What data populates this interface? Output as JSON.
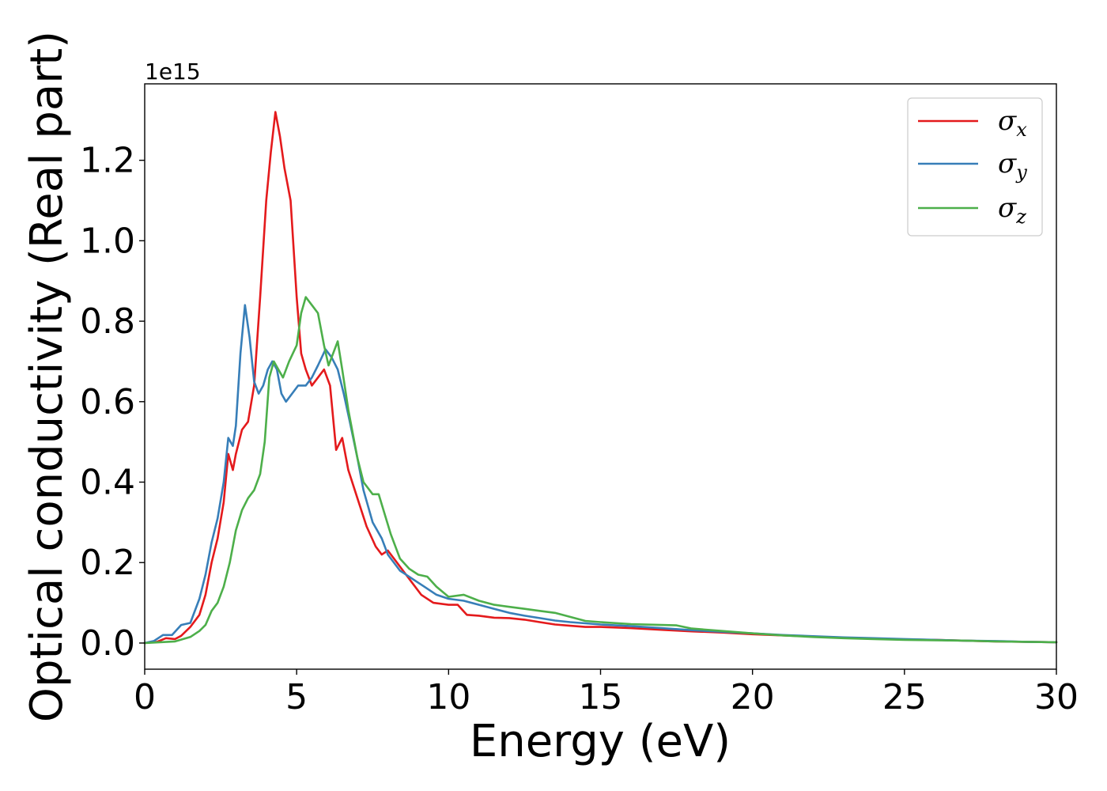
{
  "chart_data": {
    "type": "line",
    "xlabel": "Energy (eV)",
    "ylabel": "Optical conductivity (Real part)",
    "y_offset_label": "1e15",
    "xlim": [
      0,
      30
    ],
    "ylim": [
      -0.065,
      1.39
    ],
    "xticks": [
      0,
      5,
      10,
      15,
      20,
      25,
      30
    ],
    "xtick_labels": [
      "0",
      "5",
      "10",
      "15",
      "20",
      "25",
      "30"
    ],
    "yticks": [
      0.0,
      0.2,
      0.4,
      0.6,
      0.8,
      1.0,
      1.2
    ],
    "ytick_labels": [
      "0.0",
      "0.2",
      "0.4",
      "0.6",
      "0.8",
      "1.0",
      "1.2"
    ],
    "grid": false,
    "legend_position": "top-right",
    "series": [
      {
        "name": "σx",
        "name_base": "σ",
        "name_sub": "x",
        "color": "#e41a1c",
        "points": [
          [
            0,
            0
          ],
          [
            0.4,
            0.003
          ],
          [
            0.7,
            0.012
          ],
          [
            1.0,
            0.01
          ],
          [
            1.2,
            0.018
          ],
          [
            1.5,
            0.04
          ],
          [
            1.8,
            0.07
          ],
          [
            2.0,
            0.12
          ],
          [
            2.2,
            0.2
          ],
          [
            2.4,
            0.26
          ],
          [
            2.6,
            0.35
          ],
          [
            2.75,
            0.47
          ],
          [
            2.9,
            0.43
          ],
          [
            3.0,
            0.47
          ],
          [
            3.2,
            0.53
          ],
          [
            3.4,
            0.55
          ],
          [
            3.6,
            0.64
          ],
          [
            3.8,
            0.86
          ],
          [
            4.0,
            1.1
          ],
          [
            4.15,
            1.22
          ],
          [
            4.3,
            1.32
          ],
          [
            4.45,
            1.26
          ],
          [
            4.6,
            1.18
          ],
          [
            4.8,
            1.1
          ],
          [
            5.0,
            0.86
          ],
          [
            5.15,
            0.72
          ],
          [
            5.3,
            0.68
          ],
          [
            5.5,
            0.64
          ],
          [
            5.7,
            0.66
          ],
          [
            5.9,
            0.68
          ],
          [
            6.1,
            0.64
          ],
          [
            6.3,
            0.48
          ],
          [
            6.5,
            0.51
          ],
          [
            6.7,
            0.43
          ],
          [
            7.0,
            0.36
          ],
          [
            7.3,
            0.29
          ],
          [
            7.6,
            0.24
          ],
          [
            7.8,
            0.22
          ],
          [
            8.0,
            0.23
          ],
          [
            8.3,
            0.2
          ],
          [
            8.6,
            0.17
          ],
          [
            8.8,
            0.15
          ],
          [
            9.1,
            0.12
          ],
          [
            9.5,
            0.1
          ],
          [
            10.0,
            0.095
          ],
          [
            10.3,
            0.095
          ],
          [
            10.6,
            0.07
          ],
          [
            11.0,
            0.068
          ],
          [
            11.5,
            0.063
          ],
          [
            12.0,
            0.062
          ],
          [
            12.5,
            0.058
          ],
          [
            13.0,
            0.052
          ],
          [
            13.5,
            0.046
          ],
          [
            14.0,
            0.043
          ],
          [
            14.5,
            0.04
          ],
          [
            15.0,
            0.04
          ],
          [
            16.0,
            0.037
          ],
          [
            17.0,
            0.033
          ],
          [
            18.0,
            0.029
          ],
          [
            19.0,
            0.026
          ],
          [
            20.0,
            0.022
          ],
          [
            21.0,
            0.019
          ],
          [
            22.0,
            0.016
          ],
          [
            23.0,
            0.013
          ],
          [
            24.0,
            0.011
          ],
          [
            25.0,
            0.009
          ],
          [
            26.0,
            0.008
          ],
          [
            27.0,
            0.006
          ],
          [
            28.0,
            0.004
          ],
          [
            29.0,
            0.003
          ],
          [
            30.0,
            0.002
          ]
        ]
      },
      {
        "name": "σy",
        "name_base": "σ",
        "name_sub": "y",
        "color": "#377eb8",
        "points": [
          [
            0,
            0
          ],
          [
            0.3,
            0.005
          ],
          [
            0.6,
            0.02
          ],
          [
            0.9,
            0.02
          ],
          [
            1.2,
            0.045
          ],
          [
            1.5,
            0.05
          ],
          [
            1.8,
            0.11
          ],
          [
            2.0,
            0.17
          ],
          [
            2.2,
            0.25
          ],
          [
            2.4,
            0.31
          ],
          [
            2.6,
            0.4
          ],
          [
            2.75,
            0.51
          ],
          [
            2.9,
            0.49
          ],
          [
            3.0,
            0.54
          ],
          [
            3.15,
            0.72
          ],
          [
            3.3,
            0.84
          ],
          [
            3.45,
            0.76
          ],
          [
            3.6,
            0.65
          ],
          [
            3.75,
            0.62
          ],
          [
            3.9,
            0.64
          ],
          [
            4.05,
            0.68
          ],
          [
            4.2,
            0.7
          ],
          [
            4.35,
            0.68
          ],
          [
            4.5,
            0.62
          ],
          [
            4.65,
            0.6
          ],
          [
            4.85,
            0.62
          ],
          [
            5.05,
            0.64
          ],
          [
            5.3,
            0.64
          ],
          [
            5.5,
            0.66
          ],
          [
            5.7,
            0.69
          ],
          [
            5.95,
            0.73
          ],
          [
            6.15,
            0.71
          ],
          [
            6.35,
            0.68
          ],
          [
            6.55,
            0.62
          ],
          [
            6.75,
            0.55
          ],
          [
            7.0,
            0.46
          ],
          [
            7.2,
            0.38
          ],
          [
            7.5,
            0.3
          ],
          [
            7.8,
            0.26
          ],
          [
            8.0,
            0.22
          ],
          [
            8.4,
            0.18
          ],
          [
            8.8,
            0.16
          ],
          [
            9.2,
            0.14
          ],
          [
            9.6,
            0.12
          ],
          [
            10.0,
            0.11
          ],
          [
            10.5,
            0.105
          ],
          [
            11.0,
            0.095
          ],
          [
            11.5,
            0.085
          ],
          [
            12.0,
            0.075
          ],
          [
            12.5,
            0.068
          ],
          [
            13.0,
            0.062
          ],
          [
            13.5,
            0.056
          ],
          [
            14.0,
            0.052
          ],
          [
            14.5,
            0.049
          ],
          [
            15.0,
            0.046
          ],
          [
            16.0,
            0.042
          ],
          [
            17.0,
            0.037
          ],
          [
            18.0,
            0.032
          ],
          [
            19.0,
            0.028
          ],
          [
            20.0,
            0.024
          ],
          [
            21.0,
            0.02
          ],
          [
            22.0,
            0.017
          ],
          [
            23.0,
            0.014
          ],
          [
            24.0,
            0.012
          ],
          [
            25.0,
            0.01
          ],
          [
            26.0,
            0.008
          ],
          [
            27.0,
            0.006
          ],
          [
            28.0,
            0.005
          ],
          [
            29.0,
            0.003
          ],
          [
            30.0,
            0.002
          ]
        ]
      },
      {
        "name": "σz",
        "name_base": "σ",
        "name_sub": "z",
        "color": "#4daf4a",
        "points": [
          [
            0,
            0
          ],
          [
            0.5,
            0.002
          ],
          [
            1.0,
            0.004
          ],
          [
            1.5,
            0.015
          ],
          [
            1.8,
            0.03
          ],
          [
            2.0,
            0.045
          ],
          [
            2.2,
            0.08
          ],
          [
            2.4,
            0.1
          ],
          [
            2.6,
            0.14
          ],
          [
            2.8,
            0.2
          ],
          [
            3.0,
            0.28
          ],
          [
            3.2,
            0.33
          ],
          [
            3.4,
            0.36
          ],
          [
            3.6,
            0.38
          ],
          [
            3.8,
            0.42
          ],
          [
            3.95,
            0.5
          ],
          [
            4.1,
            0.66
          ],
          [
            4.25,
            0.7
          ],
          [
            4.4,
            0.68
          ],
          [
            4.55,
            0.66
          ],
          [
            4.75,
            0.7
          ],
          [
            5.0,
            0.74
          ],
          [
            5.15,
            0.82
          ],
          [
            5.3,
            0.86
          ],
          [
            5.5,
            0.84
          ],
          [
            5.7,
            0.82
          ],
          [
            5.9,
            0.74
          ],
          [
            6.05,
            0.69
          ],
          [
            6.2,
            0.72
          ],
          [
            6.35,
            0.75
          ],
          [
            6.5,
            0.68
          ],
          [
            6.7,
            0.58
          ],
          [
            7.0,
            0.46
          ],
          [
            7.2,
            0.4
          ],
          [
            7.5,
            0.37
          ],
          [
            7.7,
            0.37
          ],
          [
            7.9,
            0.32
          ],
          [
            8.1,
            0.27
          ],
          [
            8.4,
            0.21
          ],
          [
            8.7,
            0.185
          ],
          [
            9.0,
            0.17
          ],
          [
            9.3,
            0.165
          ],
          [
            9.6,
            0.14
          ],
          [
            10.0,
            0.115
          ],
          [
            10.5,
            0.12
          ],
          [
            11.0,
            0.105
          ],
          [
            11.5,
            0.095
          ],
          [
            12.0,
            0.09
          ],
          [
            12.5,
            0.085
          ],
          [
            13.0,
            0.08
          ],
          [
            13.5,
            0.075
          ],
          [
            14.0,
            0.065
          ],
          [
            14.5,
            0.055
          ],
          [
            15.0,
            0.052
          ],
          [
            16.0,
            0.047
          ],
          [
            17.0,
            0.045
          ],
          [
            17.5,
            0.044
          ],
          [
            18.0,
            0.036
          ],
          [
            19.0,
            0.03
          ],
          [
            20.0,
            0.024
          ],
          [
            21.0,
            0.019
          ],
          [
            22.0,
            0.015
          ],
          [
            23.0,
            0.012
          ],
          [
            24.0,
            0.01
          ],
          [
            25.0,
            0.008
          ],
          [
            26.0,
            0.007
          ],
          [
            27.0,
            0.006
          ],
          [
            28.0,
            0.004
          ],
          [
            29.0,
            0.003
          ],
          [
            30.0,
            0.002
          ]
        ]
      }
    ]
  }
}
